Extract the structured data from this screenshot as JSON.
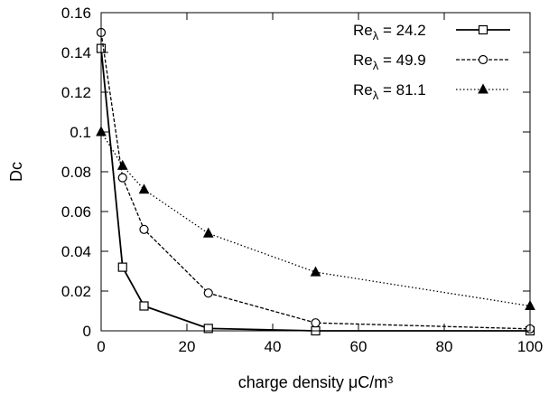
{
  "chart_data": {
    "type": "line",
    "title": "",
    "xlabel": "charge density μC/m³",
    "ylabel": "Dc",
    "xlim": [
      0,
      100
    ],
    "ylim": [
      0,
      0.16
    ],
    "x_ticks": [
      "0",
      "20",
      "40",
      "60",
      "80",
      "100"
    ],
    "y_ticks": [
      "0",
      "0.02",
      "0.04",
      "0.06",
      "0.08",
      "0.1",
      "0.12",
      "0.14",
      "0.16"
    ],
    "grid": false,
    "legend_position": "top-right",
    "x": [
      0,
      5,
      10,
      25,
      50,
      100
    ],
    "series": [
      {
        "name": "Reλ = 24.2",
        "label_base": "Re",
        "label_sub": "λ",
        "label_rest": " = 24.2",
        "marker": "square",
        "line_style": "solid",
        "values": [
          0.142,
          0.032,
          0.0125,
          0.0012,
          0.0,
          0.0
        ]
      },
      {
        "name": "Reλ = 49.9",
        "label_base": "Re",
        "label_sub": "λ",
        "label_rest": " = 49.9",
        "marker": "circle",
        "line_style": "dashed",
        "values": [
          0.15,
          0.077,
          0.051,
          0.019,
          0.004,
          0.001
        ]
      },
      {
        "name": "Reλ = 81.1",
        "label_base": "Re",
        "label_sub": "λ",
        "label_rest": " = 81.1",
        "marker": "triangle",
        "line_style": "dotted",
        "values": [
          0.1,
          0.083,
          0.071,
          0.049,
          0.0295,
          0.0125
        ]
      }
    ]
  }
}
